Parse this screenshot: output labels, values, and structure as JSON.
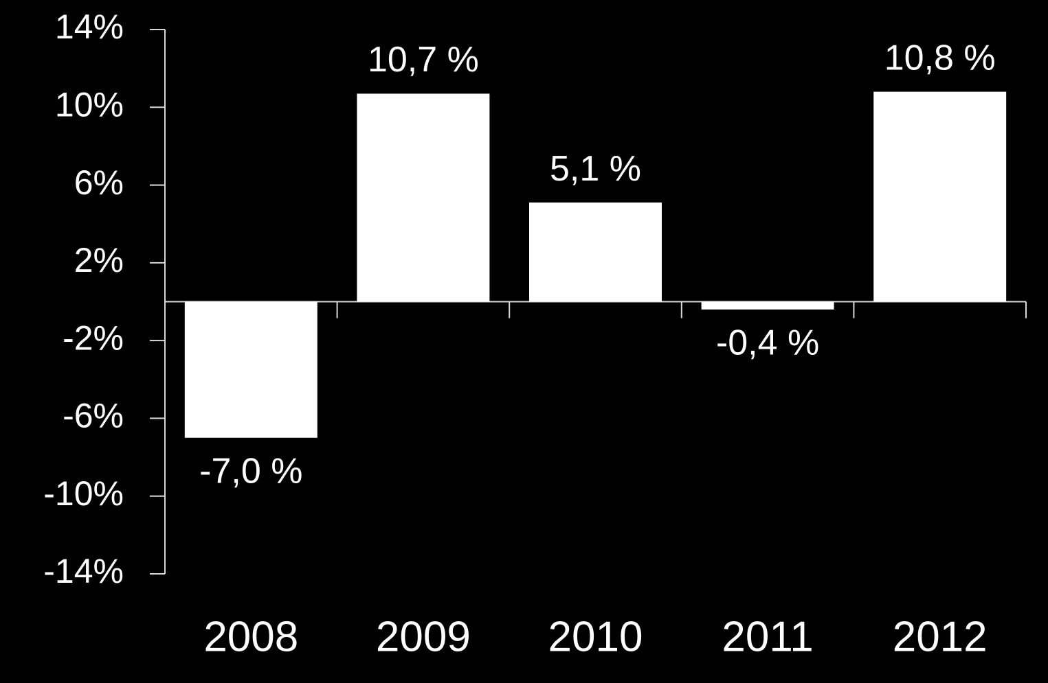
{
  "chart_data": {
    "type": "bar",
    "categories": [
      "2008",
      "2009",
      "2010",
      "2011",
      "2012"
    ],
    "values": [
      -7.0,
      10.7,
      5.1,
      -0.4,
      10.8
    ],
    "value_labels": [
      "-7,0 %",
      "10,7 %",
      "5,1 %",
      "-0,4 %",
      "10,8 %"
    ],
    "color": "#ffffff",
    "ylim": [
      -14,
      14
    ],
    "yticks": [
      {
        "value": 14,
        "label": "14%"
      },
      {
        "value": 10,
        "label": "10%"
      },
      {
        "value": 6,
        "label": "6%"
      },
      {
        "value": 2,
        "label": "2%"
      },
      {
        "value": -2,
        "label": "-2%"
      },
      {
        "value": -6,
        "label": "-6%"
      },
      {
        "value": -10,
        "label": "-10%"
      },
      {
        "value": -14,
        "label": "-14%"
      }
    ]
  }
}
